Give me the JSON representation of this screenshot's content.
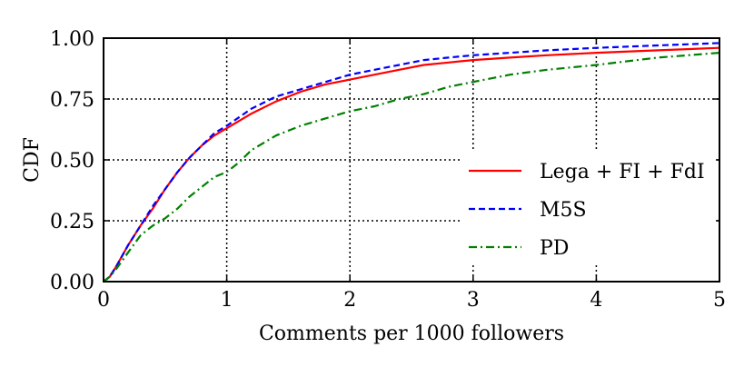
{
  "chart_data": {
    "type": "line",
    "xlabel": "Comments per 1000 followers",
    "ylabel": "CDF",
    "xlim": [
      0,
      5
    ],
    "ylim": [
      0,
      1
    ],
    "x_ticks": [
      "0",
      "1",
      "2",
      "3",
      "4",
      "5"
    ],
    "y_ticks": [
      "0.00",
      "0.25",
      "0.50",
      "0.75",
      "1.00"
    ],
    "grid": "dotted",
    "legend_position": "lower-right",
    "series": [
      {
        "name": "Lega + FI + FdI",
        "color": "#ff0000",
        "dash": "solid",
        "x": [
          0,
          0.05,
          0.1,
          0.2,
          0.3,
          0.4,
          0.5,
          0.6,
          0.7,
          0.8,
          0.9,
          1.0,
          1.2,
          1.4,
          1.6,
          1.8,
          2.0,
          2.2,
          2.4,
          2.6,
          2.8,
          3.0,
          3.3,
          3.6,
          4.0,
          4.5,
          5.0
        ],
        "y": [
          0,
          0.02,
          0.06,
          0.15,
          0.23,
          0.3,
          0.38,
          0.45,
          0.51,
          0.56,
          0.6,
          0.63,
          0.69,
          0.74,
          0.78,
          0.81,
          0.83,
          0.85,
          0.87,
          0.89,
          0.9,
          0.91,
          0.92,
          0.93,
          0.94,
          0.95,
          0.96
        ]
      },
      {
        "name": "M5S",
        "color": "#0000ff",
        "dash": "dashed",
        "x": [
          0,
          0.05,
          0.1,
          0.2,
          0.3,
          0.4,
          0.5,
          0.6,
          0.7,
          0.8,
          0.9,
          1.0,
          1.2,
          1.4,
          1.6,
          1.8,
          2.0,
          2.2,
          2.4,
          2.6,
          2.8,
          3.0,
          3.3,
          3.6,
          4.0,
          4.5,
          5.0
        ],
        "y": [
          0,
          0.02,
          0.06,
          0.15,
          0.23,
          0.31,
          0.38,
          0.45,
          0.51,
          0.56,
          0.61,
          0.64,
          0.71,
          0.76,
          0.79,
          0.82,
          0.85,
          0.87,
          0.89,
          0.91,
          0.92,
          0.93,
          0.94,
          0.95,
          0.96,
          0.97,
          0.98
        ]
      },
      {
        "name": "PD",
        "color": "#008000",
        "dash": "dashdot",
        "x": [
          0,
          0.05,
          0.1,
          0.2,
          0.3,
          0.4,
          0.5,
          0.6,
          0.7,
          0.8,
          0.9,
          1.0,
          1.1,
          1.2,
          1.4,
          1.6,
          1.8,
          2.0,
          2.2,
          2.4,
          2.6,
          2.8,
          3.0,
          3.3,
          3.6,
          4.0,
          4.5,
          5.0
        ],
        "y": [
          0,
          0.02,
          0.05,
          0.12,
          0.19,
          0.23,
          0.26,
          0.3,
          0.35,
          0.39,
          0.43,
          0.45,
          0.49,
          0.54,
          0.6,
          0.64,
          0.67,
          0.7,
          0.72,
          0.75,
          0.77,
          0.8,
          0.82,
          0.85,
          0.87,
          0.89,
          0.92,
          0.94
        ]
      }
    ]
  }
}
